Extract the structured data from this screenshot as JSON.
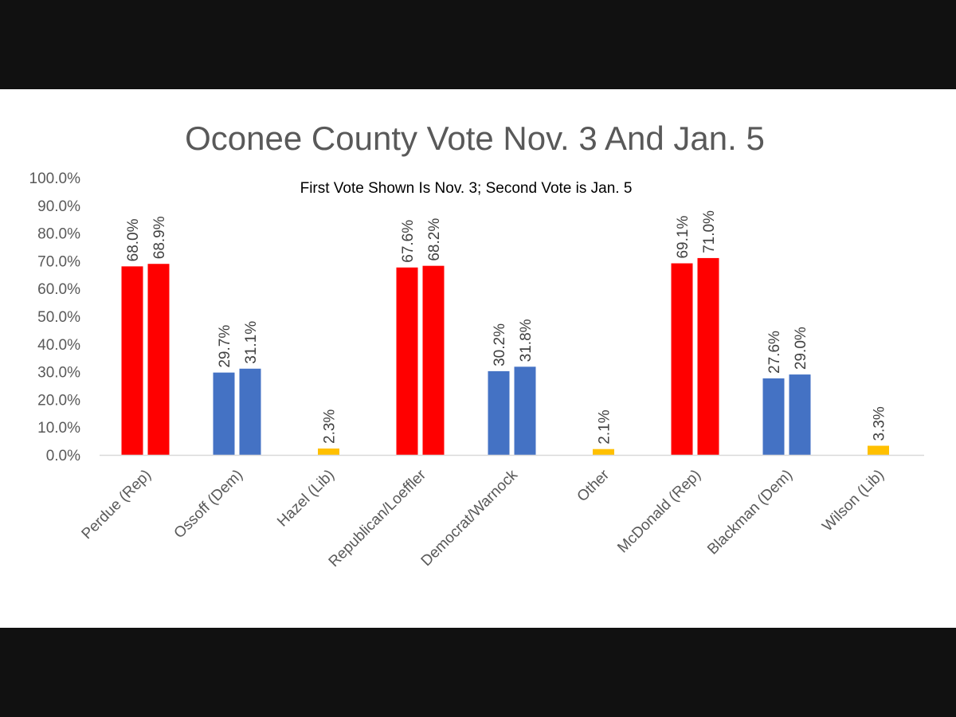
{
  "chart_data": {
    "type": "bar",
    "title": "Oconee County Vote Nov. 3 And Jan. 5",
    "subtitle": "First Vote Shown Is Nov. 3; Second Vote is Jan. 5",
    "categories": [
      "Perdue (Rep)",
      "Ossoff (Dem)",
      "Hazel (Lib)",
      "Republican/Loeffler",
      "Democrat/Warnock",
      "Other",
      "McDonald (Rep)",
      "Blackman (Dem)",
      "Wilson (Lib)"
    ],
    "first_vote": [
      68.0,
      29.7,
      2.3,
      67.6,
      30.2,
      2.1,
      69.1,
      27.6,
      3.3
    ],
    "second_vote": [
      68.9,
      31.1,
      null,
      68.2,
      31.8,
      null,
      71.0,
      29.0,
      null
    ],
    "first_vote_labels": [
      "68.0%",
      "29.7%",
      "2.3%",
      "67.6%",
      "30.2%",
      "2.1%",
      "69.1%",
      "27.6%",
      "3.3%"
    ],
    "second_vote_labels": [
      "68.9%",
      "31.1%",
      "",
      "68.2%",
      "31.8%",
      "",
      "71.0%",
      "29.0%",
      ""
    ],
    "bar_colors": [
      "#ff0000",
      "#4472c4",
      "#ffc000",
      "#ff0000",
      "#4472c4",
      "#ffc000",
      "#ff0000",
      "#4472c4",
      "#ffc000"
    ],
    "ylim": [
      0,
      100
    ],
    "yticks": [
      "0.0%",
      "10.0%",
      "20.0%",
      "30.0%",
      "40.0%",
      "50.0%",
      "60.0%",
      "70.0%",
      "80.0%",
      "90.0%",
      "100.0%"
    ],
    "grid": false,
    "legend": "none"
  }
}
